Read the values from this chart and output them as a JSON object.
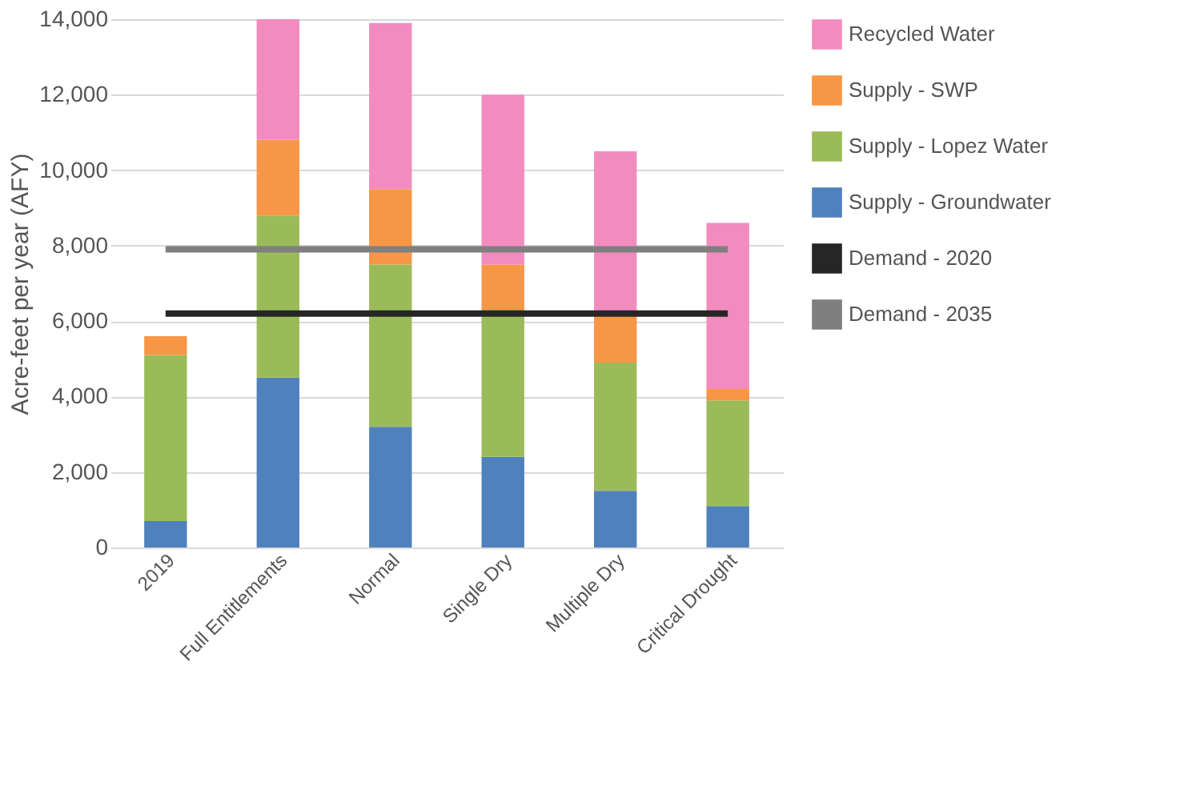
{
  "chart_data": {
    "type": "bar",
    "stacked": true,
    "ylabel": "Acre-feet  per year (AFY)",
    "categories": [
      "2019",
      "Full Entitlements",
      "Normal",
      "Single Dry",
      "Multiple Dry",
      "Critical Drought"
    ],
    "series": [
      {
        "name": "Supply - Groundwater",
        "color": "#4f81bd",
        "values": [
          700,
          4500,
          3200,
          2400,
          1500,
          1100
        ]
      },
      {
        "name": "Supply - Lopez Water",
        "color": "#9bbb59",
        "values": [
          4400,
          4300,
          4300,
          3900,
          3400,
          2800
        ]
      },
      {
        "name": "Supply - SWP",
        "color": "#f79646",
        "values": [
          500,
          2000,
          2000,
          1200,
          1300,
          300
        ]
      },
      {
        "name": "Recycled Water",
        "color": "#f28cbf",
        "values": [
          null,
          3200,
          4400,
          4500,
          4300,
          4400
        ]
      },
      {
        "name": "Demand - 2020",
        "type": "line",
        "color": "#262626",
        "values": [
          6200,
          6200,
          6200,
          6200,
          6200,
          6200
        ]
      },
      {
        "name": "Demand - 2035",
        "type": "line",
        "color": "#7f7f7f",
        "values": [
          7900,
          7900,
          7900,
          7900,
          7900,
          7900
        ]
      }
    ],
    "ylim": [
      0,
      14000
    ],
    "yticks": [
      0,
      {
        "value": 2000,
        "label": "2,000"
      },
      {
        "value": 4000,
        "label": "4,000"
      },
      {
        "value": 6000,
        "label": "6,000"
      },
      {
        "value": 8000,
        "label": "8,000"
      },
      {
        "value": 10000,
        "label": "10,000"
      },
      {
        "value": 12000,
        "label": "12,000"
      },
      {
        "value": 14000,
        "label": "14,000"
      }
    ],
    "grid": "y",
    "legend": "right"
  }
}
